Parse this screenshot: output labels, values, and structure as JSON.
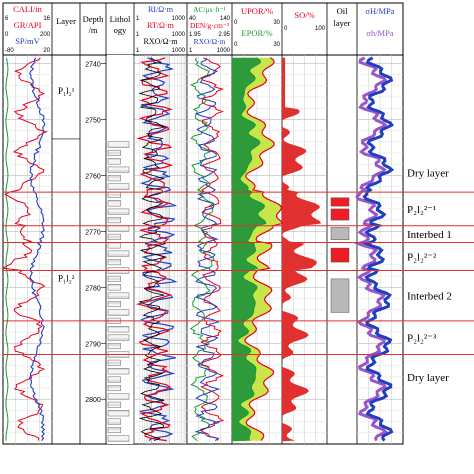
{
  "chart_data": {
    "type": "well-log",
    "depth_axis": {
      "label": "Depth /m",
      "ticks": [
        2740,
        2750,
        2760,
        2770,
        2780,
        2790,
        2800
      ]
    },
    "tracks": [
      {
        "id": "t1",
        "curves": [
          {
            "name": "CALI/in",
            "color": "#e8001a",
            "range": [
              6,
              16
            ]
          },
          {
            "name": "GR/API",
            "color": "#e8001a",
            "range": [
              0,
              200
            ]
          },
          {
            "name": "SP/mV",
            "color": "#1f3fbf",
            "range": [
              -80,
              20
            ]
          }
        ]
      },
      {
        "id": "layer",
        "header": "Layer",
        "labels": [
          "P₁l₂¹",
          "P₁l₂²"
        ]
      },
      {
        "id": "depth",
        "header": "Depth\n/m"
      },
      {
        "id": "lith",
        "header": "Lithol\nogy"
      },
      {
        "id": "t5",
        "curves": [
          {
            "name": "RI/Ω·m",
            "color": "#1f3fbf",
            "range": [
              1,
              1000
            ]
          },
          {
            "name": "RT/Ω·m",
            "color": "#e8001a",
            "range": [
              1,
              1000
            ]
          },
          {
            "name": "RXO/Ω·m",
            "color": "#000000",
            "range": [
              1,
              1000
            ]
          }
        ]
      },
      {
        "id": "t6",
        "curves": [
          {
            "name": "AC/μs·ft⁻¹",
            "color": "#1a9a30",
            "range": [
              40,
              140
            ]
          },
          {
            "name": "DEN/g·cm⁻³",
            "color": "#e8001a",
            "range": [
              1.95,
              2.95
            ]
          },
          {
            "name": "RXO/Ω·m",
            "color": "#1f3fbf",
            "range": [
              1,
              1000
            ]
          }
        ]
      },
      {
        "id": "t7",
        "curves": [
          {
            "name": "UPOR/%",
            "color": "#e8001a",
            "range": [
              0,
              30
            ]
          },
          {
            "name": "EPOR/%",
            "color": "#1a9a30",
            "range": [
              0,
              30
            ]
          }
        ]
      },
      {
        "id": "t8",
        "curves": [
          {
            "name": "SO/%",
            "color": "#e8001a",
            "range": [
              0,
              100
            ]
          }
        ]
      },
      {
        "id": "oil",
        "header": "Oil\nlayer"
      },
      {
        "id": "t10",
        "curves": [
          {
            "name": "σH/MPa",
            "color": "#1f3fbf"
          },
          {
            "name": "σh/MPa",
            "color": "#9955cc"
          }
        ]
      }
    ],
    "zones": [
      {
        "label": "Dry layer",
        "top": 2756,
        "bottom": 2763
      },
      {
        "label": "P₂l₂²⁻¹",
        "top": 2763,
        "bottom": 2769
      },
      {
        "label": "Interbed 1",
        "top": 2769,
        "bottom": 2772
      },
      {
        "label": "P₂l₂²⁻²",
        "top": 2772,
        "bottom": 2777
      },
      {
        "label": "Interbed 2",
        "top": 2777,
        "bottom": 2786
      },
      {
        "label": "P₂l₂²⁻³",
        "top": 2786,
        "bottom": 2792
      },
      {
        "label": "Dry layer",
        "top": 2792,
        "bottom": 2800
      }
    ],
    "zone_boundaries": [
      2763,
      2769,
      2772,
      2777,
      2786,
      2792
    ],
    "oil_layer_boxes": [
      {
        "top": 2764,
        "bottom": 2765.5,
        "color": "#ee1c24"
      },
      {
        "top": 2766,
        "bottom": 2768,
        "color": "#ee1c24"
      },
      {
        "top": 2769.3,
        "bottom": 2771.5,
        "color": "#b8b8b8"
      },
      {
        "top": 2773,
        "bottom": 2775.5,
        "color": "#ee1c24"
      },
      {
        "top": 2778.5,
        "bottom": 2784.5,
        "color": "#b8b8b8"
      }
    ]
  }
}
